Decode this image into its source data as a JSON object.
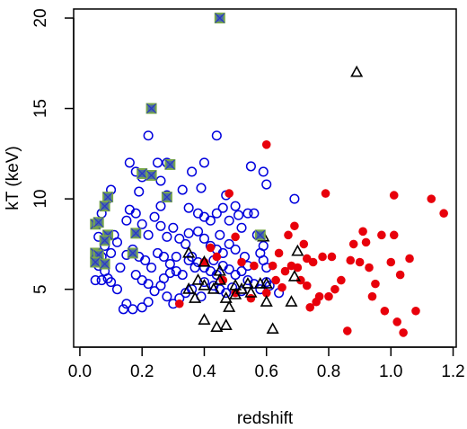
{
  "chart_data": {
    "type": "scatter",
    "title": "",
    "xlabel": "redshift",
    "ylabel": "kT (keV)",
    "xlim": [
      -0.02,
      1.21
    ],
    "ylim": [
      1.8,
      20.5
    ],
    "xticks": [
      0.0,
      0.2,
      0.4,
      0.6,
      0.8,
      1.0,
      1.2
    ],
    "xtick_labels": [
      "0.0",
      "0.2",
      "0.4",
      "0.6",
      "0.8",
      "1.0",
      "1.2"
    ],
    "yticks": [
      5,
      10,
      15,
      20
    ],
    "ytick_labels": [
      "5",
      "10",
      "15",
      "20"
    ],
    "grid": false,
    "legend": "none",
    "colors": {
      "open_circle": "#0000dd",
      "filled_circle": "#e8000b",
      "triangle": "#000000",
      "square_outline": "#7aa84a",
      "square_fill": "#4b6fa0",
      "square_cross": "#2a36c8"
    },
    "series": [
      {
        "marker": "open-circle",
        "color": "#0000dd",
        "points": [
          [
            0.09,
            10.0
          ],
          [
            0.1,
            10.5
          ],
          [
            0.07,
            9.2
          ],
          [
            0.11,
            8.0
          ],
          [
            0.06,
            7.9
          ],
          [
            0.08,
            7.4
          ],
          [
            0.1,
            7.0
          ],
          [
            0.07,
            6.8
          ],
          [
            0.05,
            6.6
          ],
          [
            0.06,
            6.3
          ],
          [
            0.08,
            6.0
          ],
          [
            0.09,
            5.6
          ],
          [
            0.05,
            5.5
          ],
          [
            0.07,
            5.5
          ],
          [
            0.1,
            5.4
          ],
          [
            0.12,
            5.0
          ],
          [
            0.15,
            4.2
          ],
          [
            0.17,
            3.9
          ],
          [
            0.2,
            4.0
          ],
          [
            0.22,
            4.3
          ],
          [
            0.14,
            3.9
          ],
          [
            0.16,
            12.0
          ],
          [
            0.18,
            11.5
          ],
          [
            0.2,
            11.2
          ],
          [
            0.22,
            13.5
          ],
          [
            0.25,
            12.0
          ],
          [
            0.26,
            11.0
          ],
          [
            0.28,
            10.2
          ],
          [
            0.16,
            9.4
          ],
          [
            0.18,
            9.2
          ],
          [
            0.2,
            8.6
          ],
          [
            0.22,
            8.0
          ],
          [
            0.24,
            9.0
          ],
          [
            0.26,
            8.5
          ],
          [
            0.28,
            7.9
          ],
          [
            0.3,
            8.4
          ],
          [
            0.32,
            7.8
          ],
          [
            0.34,
            7.5
          ],
          [
            0.17,
            7.2
          ],
          [
            0.19,
            6.8
          ],
          [
            0.21,
            6.6
          ],
          [
            0.23,
            6.2
          ],
          [
            0.25,
            7.0
          ],
          [
            0.27,
            6.8
          ],
          [
            0.29,
            6.4
          ],
          [
            0.31,
            6.0
          ],
          [
            0.33,
            5.8
          ],
          [
            0.35,
            6.6
          ],
          [
            0.37,
            6.2
          ],
          [
            0.18,
            5.8
          ],
          [
            0.2,
            5.5
          ],
          [
            0.22,
            5.3
          ],
          [
            0.24,
            4.9
          ],
          [
            0.26,
            5.2
          ],
          [
            0.28,
            4.6
          ],
          [
            0.3,
            4.2
          ],
          [
            0.32,
            4.5
          ],
          [
            0.34,
            4.8
          ],
          [
            0.36,
            5.0
          ],
          [
            0.28,
            12.0
          ],
          [
            0.33,
            10.5
          ],
          [
            0.36,
            11.5
          ],
          [
            0.4,
            12.0
          ],
          [
            0.44,
            13.5
          ],
          [
            0.35,
            9.5
          ],
          [
            0.38,
            9.2
          ],
          [
            0.4,
            9.0
          ],
          [
            0.42,
            8.8
          ],
          [
            0.44,
            9.2
          ],
          [
            0.46,
            9.5
          ],
          [
            0.48,
            8.8
          ],
          [
            0.5,
            9.6
          ],
          [
            0.38,
            8.2
          ],
          [
            0.4,
            7.8
          ],
          [
            0.42,
            7.4
          ],
          [
            0.44,
            7.2
          ],
          [
            0.46,
            7.0
          ],
          [
            0.48,
            7.5
          ],
          [
            0.5,
            7.2
          ],
          [
            0.36,
            6.8
          ],
          [
            0.38,
            6.5
          ],
          [
            0.4,
            6.2
          ],
          [
            0.42,
            6.0
          ],
          [
            0.44,
            5.8
          ],
          [
            0.46,
            6.3
          ],
          [
            0.48,
            6.1
          ],
          [
            0.5,
            5.8
          ],
          [
            0.52,
            6.0
          ],
          [
            0.54,
            6.3
          ],
          [
            0.4,
            5.4
          ],
          [
            0.43,
            5.2
          ],
          [
            0.45,
            5.0
          ],
          [
            0.47,
            4.8
          ],
          [
            0.49,
            5.1
          ],
          [
            0.52,
            4.9
          ],
          [
            0.54,
            5.5
          ],
          [
            0.56,
            5.3
          ],
          [
            0.58,
            5.0
          ],
          [
            0.55,
            11.8
          ],
          [
            0.59,
            11.5
          ],
          [
            0.6,
            10.8
          ],
          [
            0.54,
            9.2
          ],
          [
            0.56,
            9.2
          ],
          [
            0.69,
            10.0
          ],
          [
            0.52,
            8.4
          ],
          [
            0.57,
            8.0
          ],
          [
            0.59,
            7.4
          ],
          [
            0.58,
            7.0
          ],
          [
            0.59,
            6.6
          ],
          [
            0.6,
            6.2
          ],
          [
            0.6,
            5.4
          ],
          [
            0.61,
            5.2
          ],
          [
            0.64,
            4.8
          ],
          [
            0.12,
            7.6
          ],
          [
            0.13,
            6.2
          ],
          [
            0.15,
            6.9
          ],
          [
            0.15,
            8.8
          ],
          [
            0.19,
            10.4
          ],
          [
            0.26,
            9.6
          ],
          [
            0.31,
            6.8
          ],
          [
            0.35,
            8.1
          ],
          [
            0.39,
            10.6
          ],
          [
            0.47,
            10.2
          ],
          [
            0.51,
            9.1
          ],
          [
            0.53,
            6.8
          ],
          [
            0.39,
            4.6
          ],
          [
            0.43,
            6.6
          ],
          [
            0.29,
            5.9
          ],
          [
            0.27,
            5.6
          ],
          [
            0.45,
            8.0
          ]
        ]
      },
      {
        "marker": "filled-circle",
        "color": "#e8000b",
        "points": [
          [
            0.32,
            4.2
          ],
          [
            0.4,
            6.5
          ],
          [
            0.44,
            6.8
          ],
          [
            0.46,
            5.5
          ],
          [
            0.48,
            10.3
          ],
          [
            0.5,
            4.8
          ],
          [
            0.52,
            6.5
          ],
          [
            0.55,
            4.5
          ],
          [
            0.58,
            8.0
          ],
          [
            0.6,
            13.0
          ],
          [
            0.6,
            4.8
          ],
          [
            0.62,
            6.3
          ],
          [
            0.63,
            5.5
          ],
          [
            0.64,
            7.0
          ],
          [
            0.66,
            6.0
          ],
          [
            0.67,
            8.0
          ],
          [
            0.69,
            8.5
          ],
          [
            0.7,
            6.2
          ],
          [
            0.71,
            5.5
          ],
          [
            0.72,
            7.5
          ],
          [
            0.73,
            6.7
          ],
          [
            0.74,
            4.0
          ],
          [
            0.75,
            6.5
          ],
          [
            0.76,
            4.3
          ],
          [
            0.77,
            4.6
          ],
          [
            0.78,
            6.8
          ],
          [
            0.79,
            10.3
          ],
          [
            0.8,
            4.6
          ],
          [
            0.81,
            6.8
          ],
          [
            0.82,
            5.0
          ],
          [
            0.86,
            2.7
          ],
          [
            0.87,
            6.6
          ],
          [
            0.88,
            7.5
          ],
          [
            0.9,
            6.5
          ],
          [
            0.91,
            8.2
          ],
          [
            0.92,
            7.6
          ],
          [
            0.93,
            6.2
          ],
          [
            0.94,
            4.6
          ],
          [
            0.95,
            5.3
          ],
          [
            0.97,
            8.0
          ],
          [
            0.98,
            3.8
          ],
          [
            1.0,
            6.5
          ],
          [
            1.01,
            10.2
          ],
          [
            1.01,
            8.0
          ],
          [
            1.02,
            3.2
          ],
          [
            1.03,
            5.8
          ],
          [
            1.04,
            2.6
          ],
          [
            1.06,
            6.7
          ],
          [
            1.08,
            3.8
          ],
          [
            1.13,
            10.0
          ],
          [
            1.17,
            9.2
          ],
          [
            0.68,
            6.3
          ],
          [
            0.84,
            5.5
          ],
          [
            0.5,
            7.9
          ],
          [
            0.42,
            7.3
          ],
          [
            0.56,
            6.3
          ],
          [
            0.65,
            5.1
          ],
          [
            0.73,
            5.2
          ]
        ]
      },
      {
        "marker": "open-triangle",
        "color": "#000000",
        "points": [
          [
            0.89,
            17.0
          ],
          [
            0.7,
            7.1
          ],
          [
            0.59,
            7.9
          ],
          [
            0.35,
            7.0
          ],
          [
            0.4,
            6.5
          ],
          [
            0.45,
            6.0
          ],
          [
            0.35,
            5.0
          ],
          [
            0.37,
            4.5
          ],
          [
            0.38,
            5.5
          ],
          [
            0.4,
            5.2
          ],
          [
            0.43,
            5.0
          ],
          [
            0.45,
            5.5
          ],
          [
            0.47,
            4.5
          ],
          [
            0.48,
            4.0
          ],
          [
            0.5,
            4.7
          ],
          [
            0.5,
            5.2
          ],
          [
            0.52,
            5.0
          ],
          [
            0.55,
            4.8
          ],
          [
            0.58,
            5.3
          ],
          [
            0.6,
            4.3
          ],
          [
            0.4,
            3.3
          ],
          [
            0.44,
            2.9
          ],
          [
            0.47,
            3.0
          ],
          [
            0.62,
            2.8
          ],
          [
            0.68,
            4.3
          ],
          [
            0.69,
            5.7
          ],
          [
            0.54,
            5.3
          ],
          [
            0.6,
            5.3
          ]
        ]
      },
      {
        "marker": "crossed-square",
        "color": "#7aa84a",
        "points": [
          [
            0.45,
            20.0
          ],
          [
            0.23,
            15.0
          ],
          [
            0.2,
            11.4
          ],
          [
            0.23,
            11.3
          ],
          [
            0.29,
            11.9
          ],
          [
            0.09,
            10.1
          ],
          [
            0.08,
            9.6
          ],
          [
            0.28,
            10.1
          ],
          [
            0.05,
            8.6
          ],
          [
            0.06,
            8.7
          ],
          [
            0.09,
            8.0
          ],
          [
            0.08,
            7.7
          ],
          [
            0.18,
            8.1
          ],
          [
            0.05,
            7.0
          ],
          [
            0.06,
            6.9
          ],
          [
            0.17,
            7.0
          ],
          [
            0.05,
            6.5
          ],
          [
            0.08,
            6.4
          ],
          [
            0.58,
            8.0
          ]
        ]
      }
    ]
  }
}
